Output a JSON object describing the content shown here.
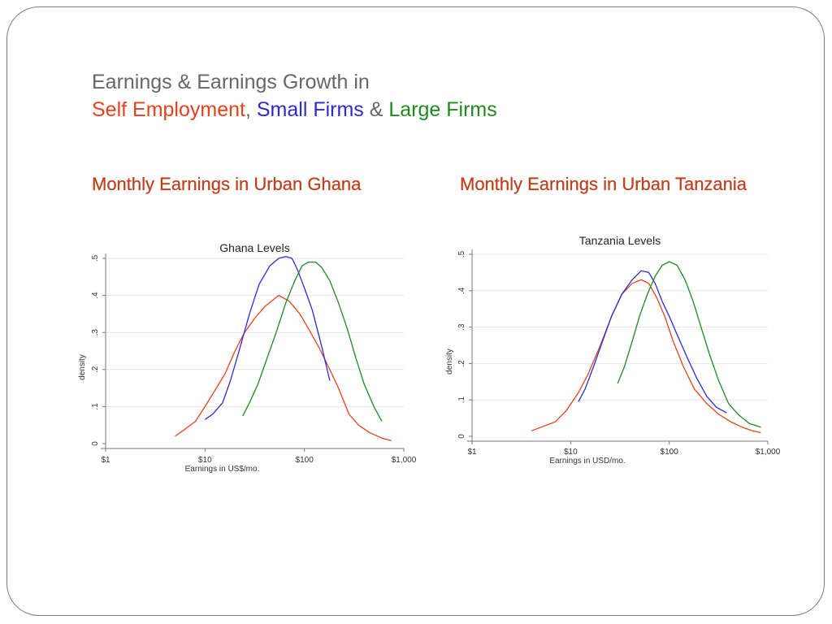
{
  "slide": {
    "title_line1": "Earnings & Earnings Growth in",
    "title_line2": {
      "part1": "Self Employment",
      "sep1": ", ",
      "part2": "Small Firms",
      "sep2": " & ",
      "part3": "Large Firms"
    },
    "colors": {
      "self_employment": "#e8411b",
      "small_firms": "#2a2ad4",
      "large_firms": "#1e8a1e",
      "subheading": "#c0401e",
      "title": "#666666"
    },
    "left_heading": "Monthly Earnings in Urban Ghana",
    "right_heading": "Monthly Earnings in Urban Tanzania"
  },
  "chart_data": [
    {
      "type": "line",
      "title": "Ghana Levels",
      "xlabel": "Earnings in US$/mo.",
      "ylabel": "density",
      "xscale": "log",
      "xlim": [
        1,
        1000
      ],
      "ylim": [
        0,
        0.5
      ],
      "xticks": [
        1,
        10,
        100,
        1000
      ],
      "xtick_labels": [
        "$1",
        "$10",
        "$100",
        "$1,000"
      ],
      "yticks": [
        0,
        0.1,
        0.2,
        0.3,
        0.4,
        0.5
      ],
      "ytick_labels": [
        "0",
        ".1",
        ".2",
        ".3",
        ".4",
        ".5"
      ],
      "grid": true,
      "series": [
        {
          "color": "#e8411b",
          "x": [
            5,
            6,
            8,
            10,
            13,
            16,
            20,
            25,
            32,
            40,
            55,
            70,
            90,
            110,
            140,
            180,
            220,
            280,
            350,
            450,
            600,
            750
          ],
          "y": [
            0.02,
            0.035,
            0.06,
            0.1,
            0.15,
            0.19,
            0.25,
            0.3,
            0.34,
            0.37,
            0.4,
            0.385,
            0.35,
            0.31,
            0.26,
            0.2,
            0.15,
            0.08,
            0.05,
            0.03,
            0.015,
            0.008
          ]
        },
        {
          "color": "#2a2ad4",
          "x": [
            10,
            12,
            15,
            18,
            22,
            28,
            35,
            45,
            55,
            65,
            75,
            85,
            100,
            120,
            150,
            180
          ],
          "y": [
            0.065,
            0.08,
            0.11,
            0.17,
            0.25,
            0.35,
            0.43,
            0.48,
            0.5,
            0.505,
            0.5,
            0.47,
            0.42,
            0.36,
            0.26,
            0.17
          ]
        },
        {
          "color": "#1e8a1e",
          "x": [
            24,
            28,
            34,
            42,
            52,
            65,
            80,
            95,
            110,
            130,
            150,
            180,
            220,
            270,
            330,
            400,
            500,
            600
          ],
          "y": [
            0.075,
            0.11,
            0.16,
            0.23,
            0.3,
            0.38,
            0.44,
            0.48,
            0.49,
            0.49,
            0.475,
            0.44,
            0.38,
            0.31,
            0.23,
            0.16,
            0.1,
            0.06
          ]
        }
      ]
    },
    {
      "type": "line",
      "title": "Tanzania Levels",
      "xlabel": "Earnings in USD/mo.",
      "ylabel": "density",
      "xscale": "log",
      "xlim": [
        1,
        1000
      ],
      "ylim": [
        0,
        0.5
      ],
      "xticks": [
        1,
        10,
        100,
        1000
      ],
      "xtick_labels": [
        "$1",
        "$10",
        "$100",
        "$1,000"
      ],
      "yticks": [
        0,
        0.1,
        0.2,
        0.3,
        0.4,
        0.5
      ],
      "ytick_labels": [
        "0",
        ".1",
        ".2",
        ".3",
        ".4",
        ".5"
      ],
      "grid": true,
      "series": [
        {
          "color": "#e8411b",
          "x": [
            4,
            5,
            7,
            9,
            12,
            15,
            20,
            26,
            33,
            42,
            52,
            62,
            75,
            90,
            110,
            140,
            180,
            240,
            320,
            420,
            550,
            700,
            850
          ],
          "y": [
            0.015,
            0.025,
            0.04,
            0.07,
            0.12,
            0.17,
            0.25,
            0.33,
            0.39,
            0.42,
            0.43,
            0.42,
            0.38,
            0.33,
            0.26,
            0.19,
            0.13,
            0.09,
            0.06,
            0.04,
            0.025,
            0.015,
            0.01
          ]
        },
        {
          "color": "#2a2ad4",
          "x": [
            12,
            14,
            17,
            21,
            26,
            33,
            42,
            52,
            62,
            72,
            85,
            100,
            120,
            150,
            190,
            240,
            300,
            380
          ],
          "y": [
            0.095,
            0.13,
            0.19,
            0.26,
            0.33,
            0.39,
            0.43,
            0.455,
            0.45,
            0.42,
            0.37,
            0.33,
            0.28,
            0.22,
            0.16,
            0.11,
            0.08,
            0.065
          ]
        },
        {
          "color": "#1e8a1e",
          "x": [
            30,
            35,
            42,
            50,
            60,
            72,
            85,
            100,
            120,
            145,
            175,
            210,
            260,
            320,
            400,
            500,
            650,
            850
          ],
          "y": [
            0.145,
            0.19,
            0.26,
            0.33,
            0.39,
            0.44,
            0.47,
            0.48,
            0.47,
            0.43,
            0.37,
            0.3,
            0.22,
            0.15,
            0.09,
            0.06,
            0.035,
            0.025
          ]
        }
      ]
    }
  ]
}
